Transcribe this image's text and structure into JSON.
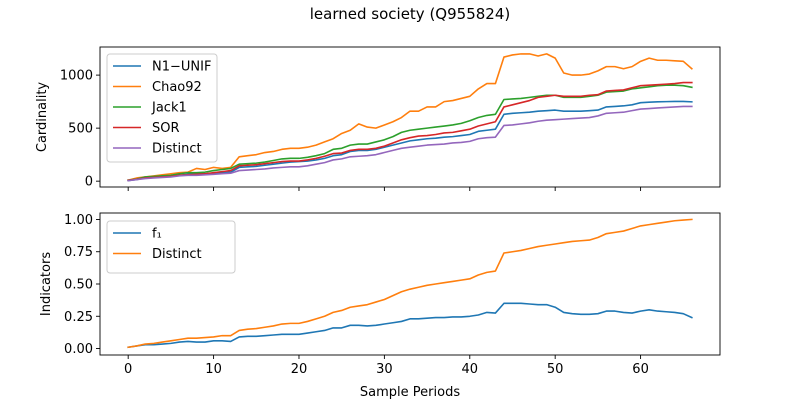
{
  "figure": {
    "title": "learned society (Q955824)"
  },
  "chart_data": [
    {
      "type": "line",
      "panel": "top",
      "title": "",
      "xlabel": "",
      "ylabel": "Cardinality",
      "xlim": [
        -3.3,
        69.3
      ],
      "ylim": [
        -55,
        1265
      ],
      "xticks": [
        0,
        10,
        20,
        30,
        40,
        50,
        60
      ],
      "yticks": [
        0,
        500,
        1000
      ],
      "xtick_labels_visible": false,
      "grid": false,
      "legend_placement": "upper-left",
      "x": [
        0,
        1,
        2,
        3,
        4,
        5,
        6,
        7,
        8,
        9,
        10,
        11,
        12,
        13,
        14,
        15,
        16,
        17,
        18,
        19,
        20,
        21,
        22,
        23,
        24,
        25,
        26,
        27,
        28,
        29,
        30,
        31,
        32,
        33,
        34,
        35,
        36,
        37,
        38,
        39,
        40,
        41,
        42,
        43,
        44,
        45,
        46,
        47,
        48,
        49,
        50,
        51,
        52,
        53,
        54,
        55,
        56,
        57,
        58,
        59,
        60,
        61,
        62,
        63,
        64,
        65,
        66
      ],
      "series": [
        {
          "name": "N1−UNIF",
          "color": "#1f77b4",
          "values": [
            5,
            15,
            30,
            35,
            40,
            45,
            55,
            65,
            70,
            70,
            75,
            80,
            85,
            130,
            135,
            140,
            150,
            160,
            170,
            180,
            185,
            190,
            200,
            215,
            240,
            250,
            280,
            290,
            290,
            300,
            320,
            340,
            360,
            380,
            390,
            400,
            405,
            415,
            420,
            430,
            440,
            470,
            480,
            490,
            630,
            640,
            645,
            650,
            660,
            665,
            670,
            660,
            660,
            660,
            665,
            670,
            700,
            705,
            710,
            720,
            740,
            745,
            748,
            750,
            752,
            752,
            748
          ]
        },
        {
          "name": "Chao92",
          "color": "#ff7f0e",
          "values": [
            10,
            30,
            40,
            50,
            60,
            70,
            80,
            85,
            120,
            110,
            130,
            120,
            130,
            230,
            240,
            250,
            270,
            280,
            300,
            310,
            310,
            320,
            340,
            370,
            400,
            450,
            480,
            540,
            510,
            500,
            530,
            560,
            600,
            660,
            660,
            700,
            700,
            750,
            760,
            780,
            800,
            870,
            920,
            920,
            1170,
            1190,
            1200,
            1200,
            1180,
            1200,
            1160,
            1020,
            1000,
            1000,
            1010,
            1040,
            1080,
            1080,
            1060,
            1080,
            1130,
            1160,
            1140,
            1140,
            1135,
            1130,
            1060
          ]
        },
        {
          "name": "Jack1",
          "color": "#2ca02c",
          "values": [
            10,
            20,
            40,
            45,
            50,
            55,
            70,
            80,
            80,
            85,
            100,
            110,
            120,
            160,
            165,
            170,
            180,
            195,
            210,
            215,
            215,
            225,
            240,
            260,
            300,
            310,
            340,
            350,
            350,
            370,
            390,
            420,
            460,
            480,
            490,
            500,
            510,
            520,
            530,
            545,
            570,
            600,
            620,
            630,
            770,
            775,
            780,
            790,
            800,
            810,
            810,
            790,
            790,
            790,
            800,
            810,
            840,
            845,
            850,
            870,
            880,
            890,
            900,
            905,
            905,
            900,
            885
          ]
        },
        {
          "name": "SOR",
          "color": "#d62728",
          "values": [
            8,
            18,
            30,
            35,
            40,
            45,
            55,
            60,
            65,
            70,
            80,
            90,
            100,
            145,
            150,
            155,
            165,
            175,
            185,
            190,
            190,
            200,
            215,
            235,
            260,
            265,
            290,
            300,
            300,
            310,
            330,
            360,
            390,
            410,
            425,
            430,
            440,
            455,
            460,
            475,
            490,
            520,
            540,
            560,
            700,
            720,
            740,
            760,
            790,
            800,
            810,
            800,
            800,
            800,
            810,
            815,
            850,
            855,
            860,
            880,
            900,
            905,
            910,
            915,
            920,
            930,
            930
          ]
        },
        {
          "name": "Distinct",
          "color": "#9467bd",
          "values": [
            5,
            15,
            25,
            30,
            35,
            40,
            50,
            55,
            55,
            60,
            65,
            70,
            75,
            100,
            105,
            110,
            115,
            125,
            130,
            135,
            135,
            145,
            160,
            175,
            200,
            210,
            230,
            235,
            240,
            250,
            270,
            290,
            310,
            320,
            330,
            340,
            345,
            350,
            360,
            365,
            375,
            400,
            410,
            415,
            525,
            530,
            540,
            550,
            565,
            575,
            580,
            585,
            590,
            595,
            600,
            615,
            640,
            645,
            650,
            665,
            680,
            685,
            690,
            695,
            700,
            705,
            705
          ]
        }
      ]
    },
    {
      "type": "line",
      "panel": "bottom",
      "title": "",
      "xlabel": "Sample Periods",
      "ylabel": "Indicators",
      "xlim": [
        -3.3,
        69.3
      ],
      "ylim": [
        -0.05,
        1.05
      ],
      "xticks": [
        0,
        10,
        20,
        30,
        40,
        50,
        60
      ],
      "yticks": [
        0.0,
        0.25,
        0.5,
        0.75,
        1.0
      ],
      "ytick_labels": [
        "0.00",
        "0.25",
        "0.50",
        "0.75",
        "1.00"
      ],
      "grid": false,
      "legend_placement": "upper-left",
      "x": [
        0,
        1,
        2,
        3,
        4,
        5,
        6,
        7,
        8,
        9,
        10,
        11,
        12,
        13,
        14,
        15,
        16,
        17,
        18,
        19,
        20,
        21,
        22,
        23,
        24,
        25,
        26,
        27,
        28,
        29,
        30,
        31,
        32,
        33,
        34,
        35,
        36,
        37,
        38,
        39,
        40,
        41,
        42,
        43,
        44,
        45,
        46,
        47,
        48,
        49,
        50,
        51,
        52,
        53,
        54,
        55,
        56,
        57,
        58,
        59,
        60,
        61,
        62,
        63,
        64,
        65,
        66
      ],
      "series": [
        {
          "name": "f₁",
          "color": "#1f77b4",
          "values": [
            0.01,
            0.02,
            0.03,
            0.03,
            0.035,
            0.04,
            0.05,
            0.055,
            0.05,
            0.05,
            0.06,
            0.06,
            0.055,
            0.09,
            0.095,
            0.095,
            0.1,
            0.105,
            0.11,
            0.11,
            0.11,
            0.12,
            0.13,
            0.14,
            0.16,
            0.16,
            0.18,
            0.18,
            0.175,
            0.18,
            0.19,
            0.2,
            0.21,
            0.23,
            0.23,
            0.235,
            0.24,
            0.24,
            0.245,
            0.245,
            0.25,
            0.26,
            0.28,
            0.275,
            0.35,
            0.35,
            0.35,
            0.345,
            0.34,
            0.34,
            0.32,
            0.28,
            0.27,
            0.265,
            0.265,
            0.27,
            0.29,
            0.29,
            0.28,
            0.275,
            0.29,
            0.3,
            0.29,
            0.285,
            0.28,
            0.27,
            0.24
          ]
        },
        {
          "name": "Distinct",
          "color": "#ff7f0e",
          "values": [
            0.01,
            0.02,
            0.035,
            0.04,
            0.05,
            0.06,
            0.07,
            0.08,
            0.08,
            0.085,
            0.09,
            0.1,
            0.1,
            0.14,
            0.15,
            0.155,
            0.165,
            0.175,
            0.19,
            0.195,
            0.195,
            0.21,
            0.23,
            0.25,
            0.28,
            0.295,
            0.32,
            0.33,
            0.34,
            0.36,
            0.38,
            0.41,
            0.44,
            0.46,
            0.475,
            0.49,
            0.5,
            0.51,
            0.52,
            0.53,
            0.54,
            0.57,
            0.59,
            0.6,
            0.74,
            0.75,
            0.76,
            0.775,
            0.79,
            0.8,
            0.81,
            0.82,
            0.83,
            0.835,
            0.84,
            0.86,
            0.89,
            0.9,
            0.91,
            0.93,
            0.95,
            0.96,
            0.97,
            0.98,
            0.99,
            0.995,
            1.0
          ]
        }
      ]
    }
  ]
}
